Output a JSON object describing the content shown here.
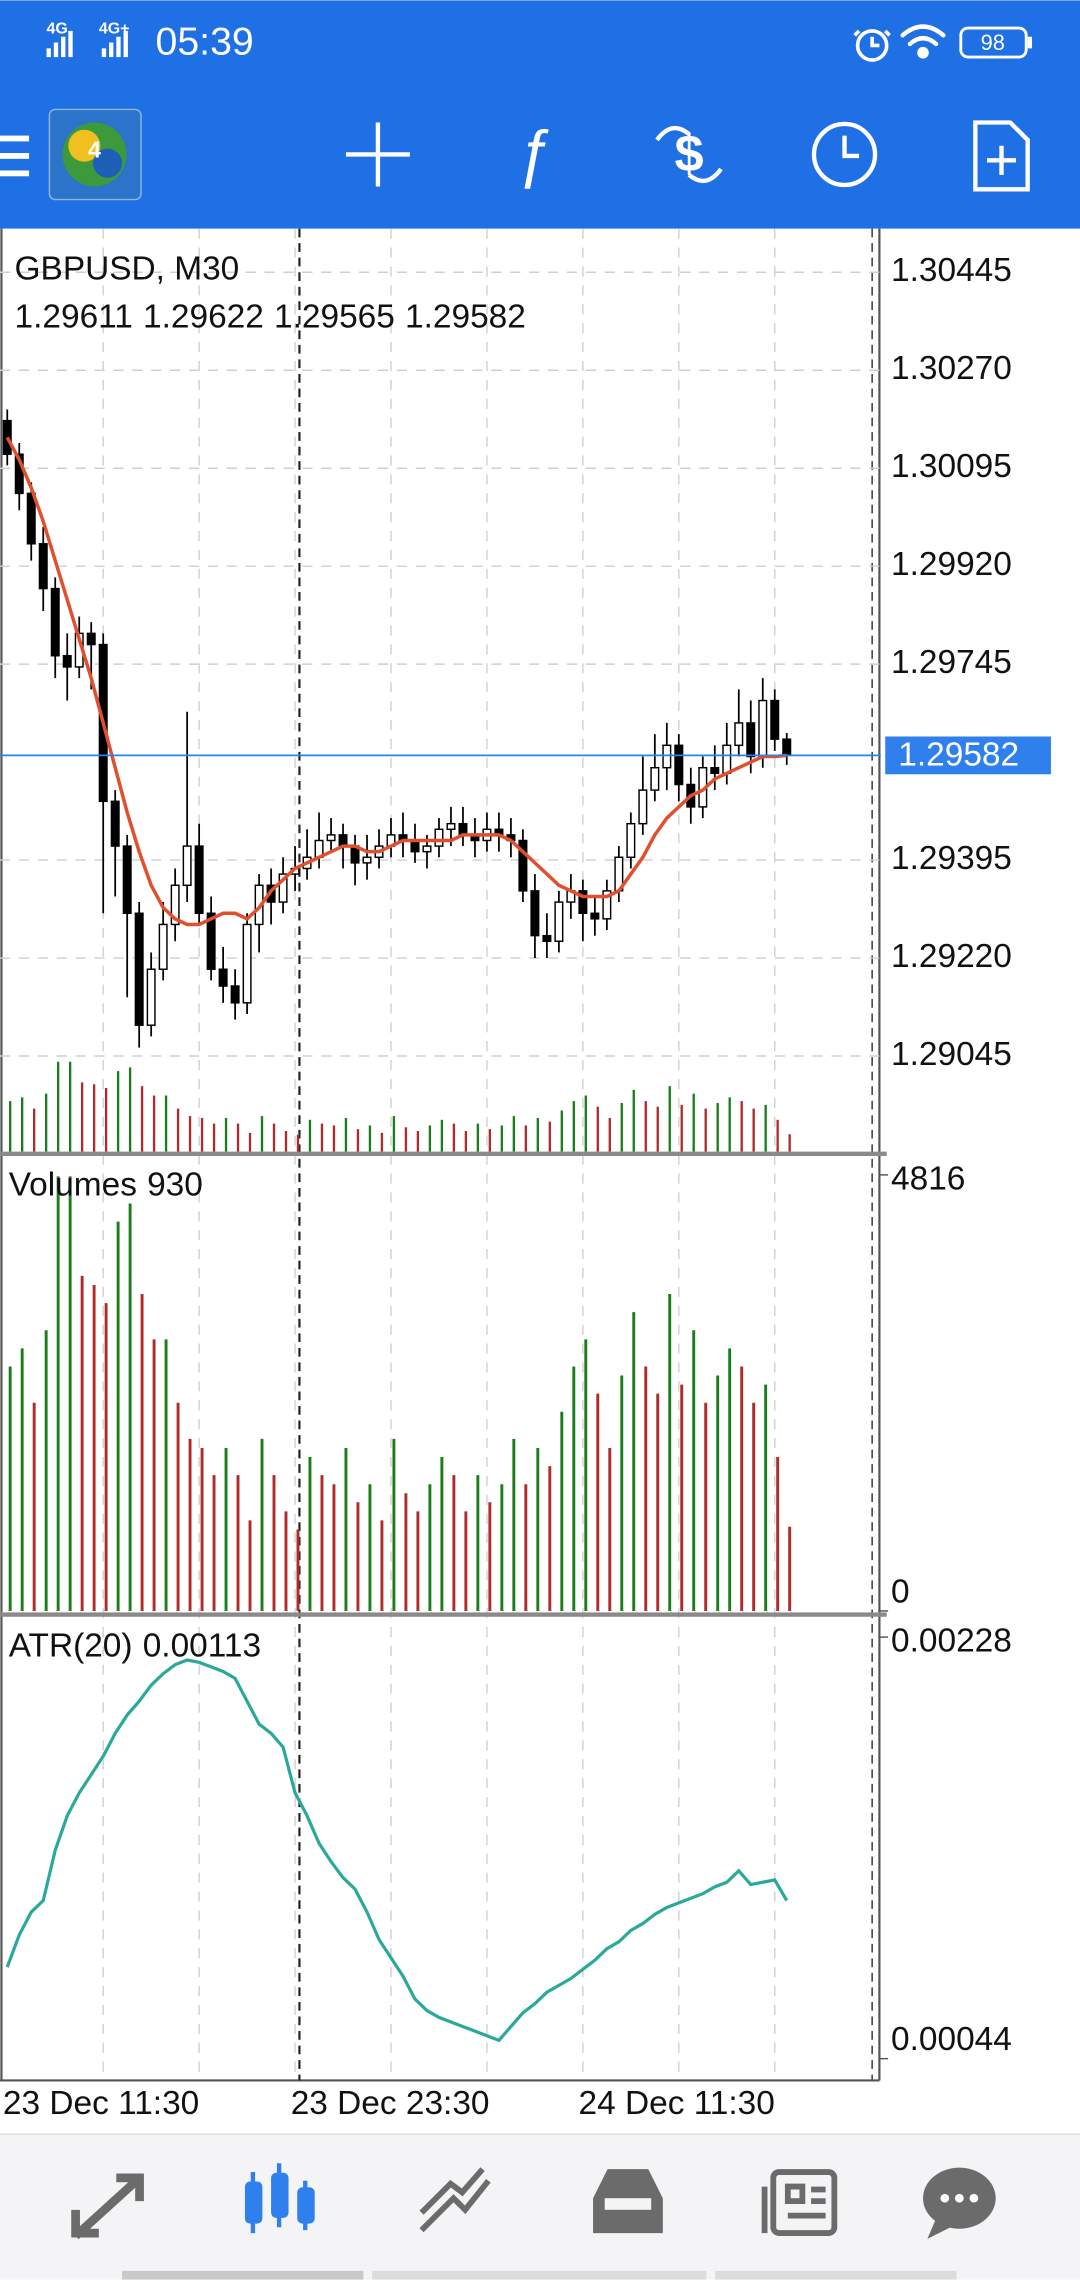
{
  "status_bar": {
    "network": [
      "4G",
      "4G+"
    ],
    "time": "05:39",
    "battery": "98"
  },
  "chart_data": [
    {
      "type": "candlestick",
      "title": "GBPUSD, M30",
      "ohlc_last": [
        1.29611,
        1.29622,
        1.29565,
        1.29582
      ],
      "current_price": 1.29582,
      "current_price_color": "#2f80ed",
      "ylim": [
        1.28869,
        1.30523
      ],
      "yticks": [
        1.30445,
        {
          "value": 1.3027,
          "label": "1.30270"
        },
        1.30095,
        {
          "value": 1.2992,
          "label": "1.29920"
        },
        1.29745,
        1.29395,
        {
          "value": 1.2922,
          "label": "1.29220"
        },
        1.29045
      ],
      "grid": true,
      "categories": [
        "23 Dec 11:30",
        null,
        null,
        null,
        null,
        null,
        null,
        null,
        null,
        null,
        null,
        null,
        null,
        null,
        null,
        null,
        null,
        null,
        null,
        null,
        null,
        null,
        null,
        null,
        "23 Dec 23:30",
        null,
        null,
        null,
        null,
        null,
        null,
        null,
        null,
        null,
        null,
        null,
        null,
        null,
        null,
        null,
        null,
        null,
        null,
        null,
        null,
        null,
        null,
        null,
        "24 Dec 11:30",
        null,
        null,
        null,
        null,
        null,
        null,
        null,
        null,
        null,
        null,
        null,
        null,
        null,
        null,
        null,
        null,
        null
      ],
      "candles": [
        [
          1.3018,
          1.302,
          1.301,
          1.3012
        ],
        [
          1.3012,
          1.3014,
          1.3002,
          1.3005
        ],
        [
          1.3005,
          1.3007,
          1.2993,
          1.2996
        ],
        [
          1.2996,
          1.2999,
          1.2984,
          1.2988
        ],
        [
          1.2988,
          1.299,
          1.2972,
          1.2976
        ],
        [
          1.2976,
          1.298,
          1.2968,
          1.2974
        ],
        [
          1.2974,
          1.2983,
          1.2972,
          1.298
        ],
        [
          1.298,
          1.2982,
          1.297,
          1.2978
        ],
        [
          1.2978,
          1.298,
          1.293,
          1.295
        ],
        [
          1.295,
          1.2952,
          1.2933,
          1.2942
        ],
        [
          1.2942,
          1.2944,
          1.2915,
          1.293
        ],
        [
          1.293,
          1.2932,
          1.2906,
          1.291
        ],
        [
          1.291,
          1.2923,
          1.2908,
          1.292
        ],
        [
          1.292,
          1.2932,
          1.2918,
          1.2928
        ],
        [
          1.2928,
          1.2938,
          1.2925,
          1.2935
        ],
        [
          1.2935,
          1.2966,
          1.2932,
          1.2942
        ],
        [
          1.2942,
          1.2946,
          1.2928,
          1.293
        ],
        [
          1.293,
          1.2933,
          1.2918,
          1.292
        ],
        [
          1.292,
          1.2924,
          1.2914,
          1.2917
        ],
        [
          1.2917,
          1.292,
          1.2911,
          1.2914
        ],
        [
          1.2914,
          1.293,
          1.2912,
          1.2928
        ],
        [
          1.2928,
          1.2937,
          1.2923,
          1.2935
        ],
        [
          1.2935,
          1.2938,
          1.2928,
          1.2932
        ],
        [
          1.2932,
          1.294,
          1.293,
          1.2937
        ],
        [
          1.2937,
          1.2942,
          1.2934,
          1.2938
        ],
        [
          1.2938,
          1.2945,
          1.2936,
          1.294
        ],
        [
          1.294,
          1.2948,
          1.2938,
          1.2943
        ],
        [
          1.2943,
          1.2947,
          1.2941,
          1.2944
        ],
        [
          1.2944,
          1.2946,
          1.2938,
          1.2942
        ],
        [
          1.2942,
          1.2944,
          1.2935,
          1.2939
        ],
        [
          1.2939,
          1.2944,
          1.2936,
          1.294
        ],
        [
          1.294,
          1.2945,
          1.2938,
          1.2942
        ],
        [
          1.2942,
          1.2947,
          1.294,
          1.2944
        ],
        [
          1.2944,
          1.2948,
          1.294,
          1.2943
        ],
        [
          1.2943,
          1.2946,
          1.2939,
          1.2941
        ],
        [
          1.2941,
          1.2944,
          1.2938,
          1.2942
        ],
        [
          1.2942,
          1.2947,
          1.294,
          1.2945
        ],
        [
          1.2945,
          1.2949,
          1.2942,
          1.2946
        ],
        [
          1.2946,
          1.2949,
          1.2942,
          1.2944
        ],
        [
          1.2944,
          1.2947,
          1.294,
          1.2943
        ],
        [
          1.2943,
          1.2948,
          1.2941,
          1.2945
        ],
        [
          1.2945,
          1.2948,
          1.2941,
          1.2944
        ],
        [
          1.2944,
          1.2947,
          1.294,
          1.2943
        ],
        [
          1.2943,
          1.2945,
          1.2932,
          1.2934
        ],
        [
          1.2934,
          1.2937,
          1.2922,
          1.2926
        ],
        [
          1.2926,
          1.293,
          1.2922,
          1.2925
        ],
        [
          1.2925,
          1.2934,
          1.2923,
          1.2932
        ],
        [
          1.2932,
          1.2937,
          1.2929,
          1.2934
        ],
        [
          1.2934,
          1.2936,
          1.2925,
          1.293
        ],
        [
          1.293,
          1.2933,
          1.2926,
          1.2929
        ],
        [
          1.2929,
          1.2936,
          1.2927,
          1.2934
        ],
        [
          1.2934,
          1.2942,
          1.2932,
          1.294
        ],
        [
          1.294,
          1.2948,
          1.2938,
          1.2946
        ],
        [
          1.2946,
          1.2958,
          1.2944,
          1.2952
        ],
        [
          1.2952,
          1.2962,
          1.295,
          1.2956
        ],
        [
          1.2956,
          1.2964,
          1.2952,
          1.296
        ],
        [
          1.296,
          1.2962,
          1.295,
          1.2953
        ],
        [
          1.2953,
          1.2956,
          1.2946,
          1.2949
        ],
        [
          1.2949,
          1.2958,
          1.2947,
          1.2956
        ],
        [
          1.2956,
          1.296,
          1.2952,
          1.2955
        ],
        [
          1.2955,
          1.2964,
          1.2953,
          1.296
        ],
        [
          1.296,
          1.297,
          1.2958,
          1.2964
        ],
        [
          1.2964,
          1.2968,
          1.2955,
          1.2958
        ],
        [
          1.2958,
          1.2972,
          1.2956,
          1.2968
        ],
        [
          1.2968,
          1.297,
          1.2959,
          1.29611
        ],
        [
          1.29611,
          1.29622,
          1.29565,
          1.29582
        ]
      ],
      "moving_average": {
        "color": "#e0502e",
        "values": [
          1.3015,
          1.3011,
          1.3006,
          1.3,
          1.2993,
          1.2986,
          1.2979,
          1.2972,
          1.2964,
          1.2956,
          1.2948,
          1.2941,
          1.2935,
          1.2931,
          1.2929,
          1.2928,
          1.2928,
          1.2929,
          1.293,
          1.293,
          1.2929,
          1.2931,
          1.2934,
          1.2936,
          1.2938,
          1.2939,
          1.294,
          1.2941,
          1.2942,
          1.2942,
          1.2941,
          1.2941,
          1.2942,
          1.2943,
          1.2943,
          1.2943,
          1.2943,
          1.2943,
          1.2944,
          1.2944,
          1.2944,
          1.2944,
          1.2943,
          1.2941,
          1.2939,
          1.2937,
          1.2935,
          1.2934,
          1.2933,
          1.2933,
          1.2933,
          1.2934,
          1.2937,
          1.294,
          1.2944,
          1.2947,
          1.2949,
          1.2951,
          1.2952,
          1.2954,
          1.2955,
          1.2956,
          1.2957,
          1.2958,
          1.2958,
          1.29582
        ]
      }
    },
    {
      "type": "volume",
      "title": "Volumes",
      "last_value": 930,
      "up_color": "#1b7d1b",
      "down_color": "#b02a2a",
      "ylim": [
        0,
        4816
      ],
      "yticks": [
        4816,
        0
      ],
      "values": [
        2700,
        2900,
        2300,
        3100,
        4800,
        4800,
        3700,
        3600,
        3400,
        4300,
        4500,
        3500,
        3000,
        3000,
        2300,
        1900,
        1800,
        1500,
        1800,
        1500,
        1000,
        1900,
        1500,
        1100,
        900,
        1700,
        1500,
        1400,
        1800,
        1200,
        1400,
        1000,
        1900,
        1300,
        1100,
        1400,
        1700,
        1500,
        1100,
        1500,
        1200,
        1400,
        1900,
        1400,
        1800,
        1600,
        2200,
        2700,
        3000,
        2400,
        1800,
        2600,
        3300,
        2700,
        2400,
        3500,
        2500,
        3100,
        2300,
        2600,
        2900,
        2700,
        2300,
        2500,
        1700,
        930
      ]
    },
    {
      "type": "line",
      "title": "ATR(20)",
      "last_value": 0.00113,
      "color": "#2aa89a",
      "ylim": [
        0.00044,
        0.00228
      ],
      "yticks": [
        0.00228,
        0.00044
      ],
      "values": [
        0.00084,
        0.00098,
        0.00108,
        0.00113,
        0.00135,
        0.0015,
        0.0016,
        0.00168,
        0.00176,
        0.00186,
        0.00194,
        0.002,
        0.00207,
        0.00212,
        0.00216,
        0.00218,
        0.00217,
        0.00215,
        0.00213,
        0.0021,
        0.002,
        0.0019,
        0.00186,
        0.0018,
        0.0016,
        0.0015,
        0.00138,
        0.0013,
        0.00123,
        0.00118,
        0.00108,
        0.00096,
        0.00088,
        0.0008,
        0.0007,
        0.00065,
        0.00062,
        0.0006,
        0.00058,
        0.00056,
        0.00054,
        0.00052,
        0.00058,
        0.00064,
        0.00068,
        0.00073,
        0.00076,
        0.00079,
        0.00083,
        0.00087,
        0.00092,
        0.00095,
        0.001,
        0.00103,
        0.00107,
        0.0011,
        0.00112,
        0.00114,
        0.00116,
        0.00119,
        0.00121,
        0.00126,
        0.0012,
        0.00121,
        0.00122,
        0.00113
      ]
    }
  ]
}
